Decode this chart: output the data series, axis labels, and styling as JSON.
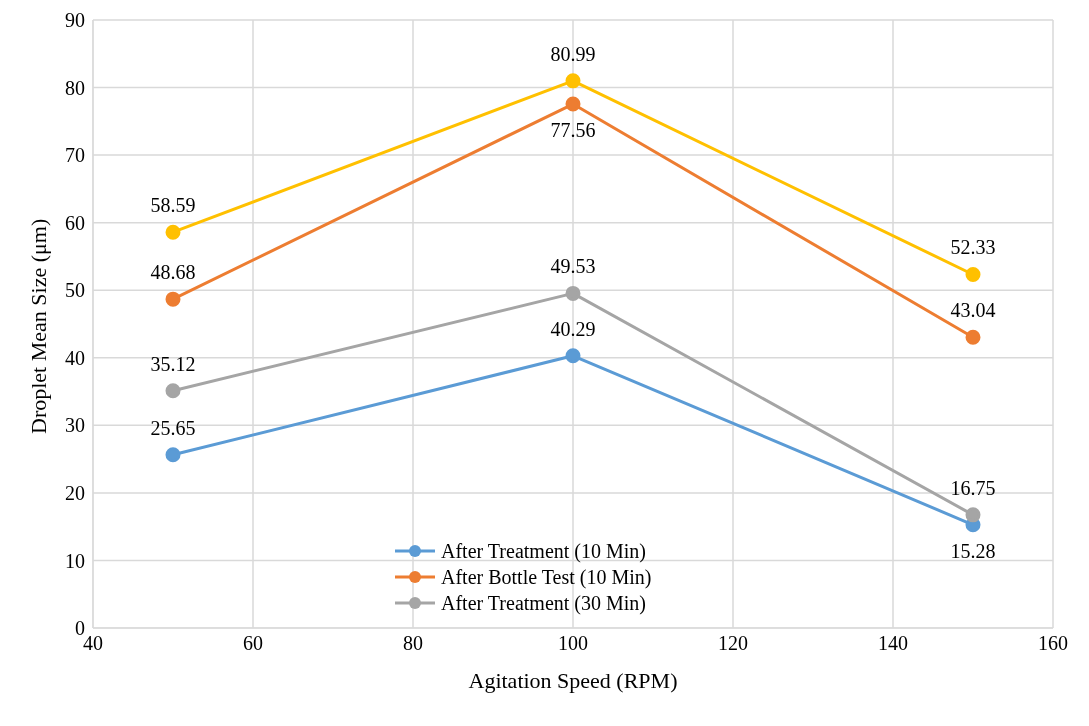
{
  "chart_data": {
    "type": "line",
    "xlabel": "Agitation Speed (RPM)",
    "ylabel": "Droplet Mean Size (μm)",
    "x": [
      50,
      100,
      150
    ],
    "series": [
      {
        "name": "After Treatment (10 Min)",
        "color": "#5b9bd5",
        "values": [
          25.65,
          40.29,
          15.28
        ]
      },
      {
        "name": "After Bottle Test (10 Min)",
        "color": "#ed7d31",
        "values": [
          48.68,
          77.56,
          43.04
        ]
      },
      {
        "name": "After Treatment (30 Min)",
        "color": "#a5a5a5",
        "values": [
          35.12,
          49.53,
          16.75
        ]
      },
      {
        "color": "#ffc000",
        "values": [
          58.59,
          80.99,
          52.33
        ]
      }
    ],
    "xlim": [
      40,
      160
    ],
    "xticks": [
      40,
      60,
      80,
      100,
      120,
      140,
      160
    ],
    "ylim": [
      0,
      90
    ],
    "yticks": [
      0,
      10,
      20,
      30,
      40,
      50,
      60,
      70,
      80,
      90
    ],
    "grid": true,
    "legend": "bottom",
    "marker": "circle",
    "line_style": "solid",
    "data_labels": true
  }
}
